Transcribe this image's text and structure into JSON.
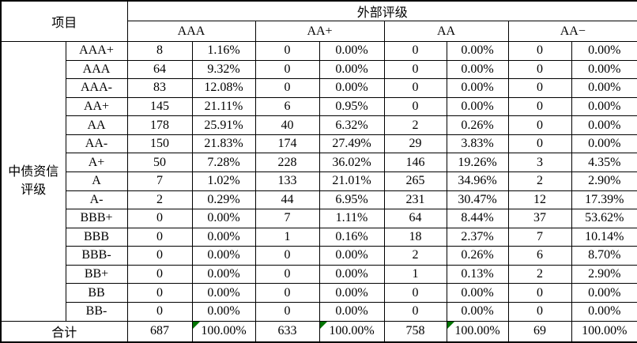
{
  "colors": {
    "border": "#000000",
    "text": "#000000",
    "background": "#ffffff",
    "flag_triangle": "#007500"
  },
  "table": {
    "corner_header": "项目",
    "col_group_header": "外部评级",
    "row_group_header": "中债资信评级",
    "external_ratings": [
      "AAA",
      "AA+",
      "AA",
      "AA−"
    ],
    "total_label": "合计",
    "rows": [
      {
        "label": "AAA+",
        "cells": [
          "8",
          "1.16%",
          "0",
          "0.00%",
          "0",
          "0.00%",
          "0",
          "0.00%"
        ]
      },
      {
        "label": "AAA",
        "cells": [
          "64",
          "9.32%",
          "0",
          "0.00%",
          "0",
          "0.00%",
          "0",
          "0.00%"
        ]
      },
      {
        "label": "AAA-",
        "cells": [
          "83",
          "12.08%",
          "0",
          "0.00%",
          "0",
          "0.00%",
          "0",
          "0.00%"
        ]
      },
      {
        "label": "AA+",
        "cells": [
          "145",
          "21.11%",
          "6",
          "0.95%",
          "0",
          "0.00%",
          "0",
          "0.00%"
        ]
      },
      {
        "label": "AA",
        "cells": [
          "178",
          "25.91%",
          "40",
          "6.32%",
          "2",
          "0.26%",
          "0",
          "0.00%"
        ]
      },
      {
        "label": "AA-",
        "cells": [
          "150",
          "21.83%",
          "174",
          "27.49%",
          "29",
          "3.83%",
          "0",
          "0.00%"
        ]
      },
      {
        "label": "A+",
        "cells": [
          "50",
          "7.28%",
          "228",
          "36.02%",
          "146",
          "19.26%",
          "3",
          "4.35%"
        ]
      },
      {
        "label": "A",
        "cells": [
          "7",
          "1.02%",
          "133",
          "21.01%",
          "265",
          "34.96%",
          "2",
          "2.90%"
        ]
      },
      {
        "label": "A-",
        "cells": [
          "2",
          "0.29%",
          "44",
          "6.95%",
          "231",
          "30.47%",
          "12",
          "17.39%"
        ]
      },
      {
        "label": "BBB+",
        "cells": [
          "0",
          "0.00%",
          "7",
          "1.11%",
          "64",
          "8.44%",
          "37",
          "53.62%"
        ]
      },
      {
        "label": "BBB",
        "cells": [
          "0",
          "0.00%",
          "1",
          "0.16%",
          "18",
          "2.37%",
          "7",
          "10.14%"
        ]
      },
      {
        "label": "BBB-",
        "cells": [
          "0",
          "0.00%",
          "0",
          "0.00%",
          "2",
          "0.26%",
          "6",
          "8.70%"
        ]
      },
      {
        "label": "BB+",
        "cells": [
          "0",
          "0.00%",
          "0",
          "0.00%",
          "1",
          "0.13%",
          "2",
          "2.90%"
        ]
      },
      {
        "label": "BB",
        "cells": [
          "0",
          "0.00%",
          "0",
          "0.00%",
          "0",
          "0.00%",
          "0",
          "0.00%"
        ]
      },
      {
        "label": "BB-",
        "cells": [
          "0",
          "0.00%",
          "0",
          "0.00%",
          "0",
          "0.00%",
          "0",
          "0.00%"
        ]
      }
    ],
    "total_row": {
      "cells": [
        "687",
        "100.00%",
        "633",
        "100.00%",
        "758",
        "100.00%",
        "69",
        "100.00%"
      ],
      "flagged_cells": [
        1,
        3,
        5
      ]
    }
  }
}
